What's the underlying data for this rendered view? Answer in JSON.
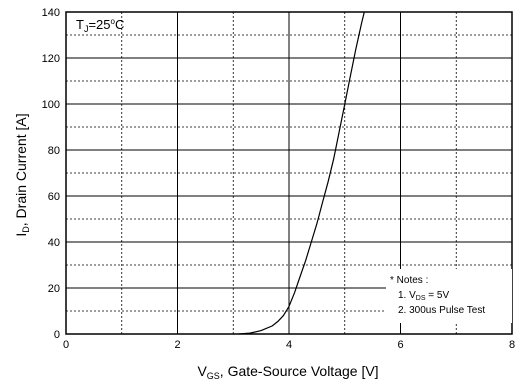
{
  "chart_data": {
    "type": "line",
    "xlim": [
      0,
      8
    ],
    "ylim": [
      0,
      140
    ],
    "x_ticks": [
      "0",
      "2",
      "4",
      "6",
      "8"
    ],
    "y_ticks": [
      "0",
      "20",
      "40",
      "60",
      "80",
      "100",
      "120",
      "140"
    ],
    "x_minor_step": 1,
    "y_minor_step": 10,
    "grid": true,
    "xlabel": {
      "main": "V",
      "sub": "GS",
      "rest": ", Gate-Source Voltage [V]"
    },
    "ylabel": {
      "main": "I",
      "sub": "D",
      "rest": ", Drain Current [A]"
    },
    "annotation": {
      "main": "T",
      "sub": "J",
      "rest": "=25",
      "sup": "o",
      "unit": "C"
    },
    "notes": {
      "title": "* Notes :",
      "line1": {
        "prefix": "1. V",
        "sub": "DS",
        "rest": " = 5V"
      },
      "line2": "2. 300us Pulse Test"
    },
    "series": [
      {
        "x": [
          3.1,
          3.3,
          3.5,
          3.7,
          3.8,
          3.9,
          4.0,
          4.1,
          4.2,
          4.3,
          4.4,
          4.5,
          4.6,
          4.7,
          4.8,
          4.9,
          5.0,
          5.1,
          5.2,
          5.3,
          5.35
        ],
        "y": [
          0,
          0.4,
          1.5,
          3.5,
          5.5,
          8,
          12,
          18,
          25,
          32,
          40,
          48,
          57,
          66,
          76,
          88,
          100,
          112,
          124,
          135,
          140
        ]
      }
    ],
    "colors": {
      "line": "#000000",
      "grid": "#000000"
    }
  }
}
